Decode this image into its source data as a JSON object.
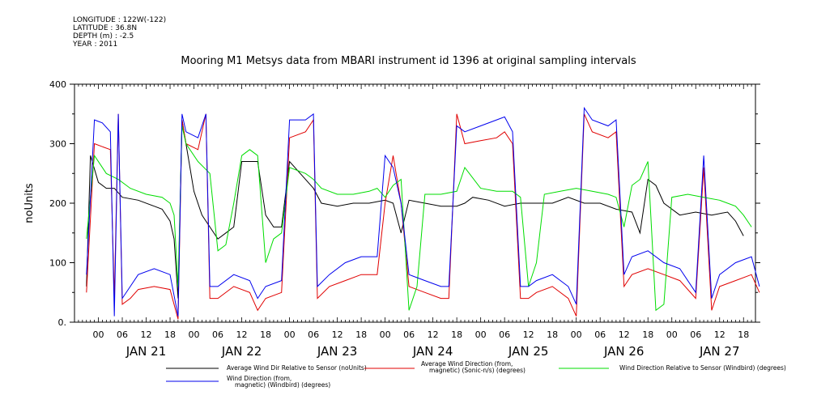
{
  "meta": {
    "longitude": "LONGITUDE : 122W(-122)",
    "latitude": "LATITUDE : 36.8N",
    "depth": "DEPTH (m) : -2.5",
    "year": "YEAR : 2011"
  },
  "chart_data": {
    "type": "line",
    "title": "Mooring M1 Metsys data from MBARI instrument id 1396 at original sampling intervals",
    "ylabel": "noUnits",
    "xlabel": "",
    "ylim": [
      0,
      400
    ],
    "yticks": [
      "0.",
      "100",
      "200",
      "300",
      "400"
    ],
    "xlim_hours": [
      -6,
      165
    ],
    "hour_ticks": [
      "00",
      "06",
      "12",
      "18",
      "00",
      "06",
      "12",
      "18",
      "00",
      "06",
      "12",
      "18",
      "00",
      "06",
      "12",
      "18",
      "00",
      "06",
      "12",
      "18",
      "00",
      "06",
      "12",
      "18",
      "00",
      "06",
      "12",
      "18"
    ],
    "day_labels": [
      "JAN 21",
      "JAN 22",
      "JAN 23",
      "JAN 24",
      "JAN 25",
      "JAN 26",
      "JAN 27"
    ],
    "grid": false,
    "legend_position": "bottom",
    "colors": {
      "black": "#000000",
      "red": "#e00000",
      "green": "#00dd00",
      "blue": "#0000ee"
    },
    "series": [
      {
        "name": "Average Wind Dir Relative to Sensor (noUnits)",
        "color": "#000000",
        "points": [
          [
            -3,
            60
          ],
          [
            -2,
            280
          ],
          [
            0,
            235
          ],
          [
            2,
            225
          ],
          [
            4,
            225
          ],
          [
            6,
            210
          ],
          [
            10,
            205
          ],
          [
            14,
            195
          ],
          [
            16,
            190
          ],
          [
            18,
            170
          ],
          [
            19,
            140
          ],
          [
            20,
            40
          ],
          [
            21,
            340
          ],
          [
            22,
            300
          ],
          [
            24,
            220
          ],
          [
            26,
            180
          ],
          [
            28,
            160
          ],
          [
            30,
            140
          ],
          [
            32,
            150
          ],
          [
            34,
            160
          ],
          [
            36,
            270
          ],
          [
            40,
            270
          ],
          [
            42,
            180
          ],
          [
            44,
            160
          ],
          [
            46,
            160
          ],
          [
            48,
            270
          ],
          [
            52,
            240
          ],
          [
            54,
            225
          ],
          [
            56,
            200
          ],
          [
            60,
            195
          ],
          [
            64,
            200
          ],
          [
            68,
            200
          ],
          [
            72,
            205
          ],
          [
            74,
            200
          ],
          [
            76,
            150
          ],
          [
            78,
            205
          ],
          [
            82,
            200
          ],
          [
            86,
            195
          ],
          [
            90,
            195
          ],
          [
            92,
            200
          ],
          [
            94,
            210
          ],
          [
            98,
            205
          ],
          [
            102,
            195
          ],
          [
            106,
            200
          ],
          [
            110,
            200
          ],
          [
            114,
            200
          ],
          [
            118,
            210
          ],
          [
            122,
            200
          ],
          [
            126,
            200
          ],
          [
            130,
            190
          ],
          [
            134,
            185
          ],
          [
            136,
            150
          ],
          [
            138,
            240
          ],
          [
            140,
            230
          ],
          [
            142,
            200
          ],
          [
            146,
            180
          ],
          [
            150,
            185
          ],
          [
            154,
            180
          ],
          [
            158,
            185
          ],
          [
            160,
            170
          ],
          [
            162,
            145
          ]
        ]
      },
      {
        "name": "Average Wind Direction (from, magnetic) (Sonic-n/s) (degrees)",
        "color": "#e00000",
        "points": [
          [
            -3,
            50
          ],
          [
            -1,
            300
          ],
          [
            1,
            295
          ],
          [
            3,
            290
          ],
          [
            4,
            40
          ],
          [
            5,
            350
          ],
          [
            6,
            30
          ],
          [
            8,
            40
          ],
          [
            10,
            55
          ],
          [
            14,
            60
          ],
          [
            18,
            55
          ],
          [
            20,
            5
          ],
          [
            21,
            340
          ],
          [
            22,
            300
          ],
          [
            25,
            290
          ],
          [
            27,
            350
          ],
          [
            28,
            40
          ],
          [
            30,
            40
          ],
          [
            34,
            60
          ],
          [
            38,
            50
          ],
          [
            40,
            20
          ],
          [
            42,
            40
          ],
          [
            46,
            50
          ],
          [
            48,
            310
          ],
          [
            52,
            320
          ],
          [
            54,
            340
          ],
          [
            55,
            40
          ],
          [
            58,
            60
          ],
          [
            62,
            70
          ],
          [
            66,
            80
          ],
          [
            70,
            80
          ],
          [
            72,
            200
          ],
          [
            74,
            280
          ],
          [
            76,
            200
          ],
          [
            78,
            60
          ],
          [
            82,
            50
          ],
          [
            86,
            40
          ],
          [
            88,
            40
          ],
          [
            90,
            350
          ],
          [
            92,
            300
          ],
          [
            96,
            305
          ],
          [
            100,
            310
          ],
          [
            102,
            320
          ],
          [
            104,
            300
          ],
          [
            106,
            40
          ],
          [
            108,
            40
          ],
          [
            110,
            50
          ],
          [
            114,
            60
          ],
          [
            118,
            40
          ],
          [
            120,
            10
          ],
          [
            122,
            350
          ],
          [
            124,
            320
          ],
          [
            128,
            310
          ],
          [
            130,
            320
          ],
          [
            132,
            60
          ],
          [
            134,
            80
          ],
          [
            138,
            90
          ],
          [
            142,
            80
          ],
          [
            146,
            70
          ],
          [
            150,
            40
          ],
          [
            152,
            260
          ],
          [
            154,
            20
          ],
          [
            156,
            60
          ],
          [
            160,
            70
          ],
          [
            164,
            80
          ],
          [
            166,
            50
          ]
        ]
      },
      {
        "name": "Wind Direction Relative to Sensor (Windbird) (degrees)",
        "color": "#00dd00",
        "points": [
          [
            -3,
            140
          ],
          [
            -1,
            280
          ],
          [
            2,
            250
          ],
          [
            5,
            240
          ],
          [
            8,
            225
          ],
          [
            12,
            215
          ],
          [
            16,
            210
          ],
          [
            18,
            200
          ],
          [
            19,
            180
          ],
          [
            20,
            60
          ],
          [
            21,
            330
          ],
          [
            22,
            300
          ],
          [
            25,
            270
          ],
          [
            28,
            250
          ],
          [
            30,
            120
          ],
          [
            32,
            130
          ],
          [
            34,
            200
          ],
          [
            36,
            280
          ],
          [
            38,
            290
          ],
          [
            40,
            280
          ],
          [
            42,
            100
          ],
          [
            44,
            140
          ],
          [
            46,
            150
          ],
          [
            48,
            260
          ],
          [
            52,
            250
          ],
          [
            54,
            240
          ],
          [
            56,
            225
          ],
          [
            60,
            215
          ],
          [
            64,
            215
          ],
          [
            68,
            220
          ],
          [
            70,
            225
          ],
          [
            72,
            210
          ],
          [
            74,
            230
          ],
          [
            76,
            240
          ],
          [
            78,
            20
          ],
          [
            80,
            60
          ],
          [
            82,
            215
          ],
          [
            86,
            215
          ],
          [
            90,
            220
          ],
          [
            92,
            260
          ],
          [
            96,
            225
          ],
          [
            100,
            220
          ],
          [
            104,
            220
          ],
          [
            106,
            210
          ],
          [
            108,
            60
          ],
          [
            110,
            100
          ],
          [
            112,
            215
          ],
          [
            116,
            220
          ],
          [
            120,
            225
          ],
          [
            124,
            220
          ],
          [
            128,
            215
          ],
          [
            130,
            210
          ],
          [
            132,
            160
          ],
          [
            134,
            230
          ],
          [
            136,
            240
          ],
          [
            138,
            270
          ],
          [
            140,
            20
          ],
          [
            142,
            30
          ],
          [
            144,
            210
          ],
          [
            148,
            215
          ],
          [
            152,
            210
          ],
          [
            156,
            205
          ],
          [
            160,
            195
          ],
          [
            162,
            180
          ],
          [
            164,
            160
          ]
        ]
      },
      {
        "name": "Wind Direction (from, magnetic) (Windbird) (degrees)",
        "color": "#0000ee",
        "points": [
          [
            -3,
            80
          ],
          [
            -1,
            340
          ],
          [
            1,
            335
          ],
          [
            3,
            320
          ],
          [
            4,
            10
          ],
          [
            5,
            350
          ],
          [
            6,
            40
          ],
          [
            8,
            60
          ],
          [
            10,
            80
          ],
          [
            14,
            90
          ],
          [
            18,
            80
          ],
          [
            20,
            10
          ],
          [
            21,
            350
          ],
          [
            22,
            320
          ],
          [
            25,
            310
          ],
          [
            27,
            350
          ],
          [
            28,
            60
          ],
          [
            30,
            60
          ],
          [
            34,
            80
          ],
          [
            38,
            70
          ],
          [
            40,
            40
          ],
          [
            42,
            60
          ],
          [
            46,
            70
          ],
          [
            48,
            340
          ],
          [
            52,
            340
          ],
          [
            54,
            350
          ],
          [
            55,
            60
          ],
          [
            58,
            80
          ],
          [
            62,
            100
          ],
          [
            66,
            110
          ],
          [
            70,
            110
          ],
          [
            72,
            280
          ],
          [
            74,
            260
          ],
          [
            76,
            200
          ],
          [
            78,
            80
          ],
          [
            82,
            70
          ],
          [
            86,
            60
          ],
          [
            88,
            60
          ],
          [
            90,
            330
          ],
          [
            92,
            320
          ],
          [
            96,
            330
          ],
          [
            100,
            340
          ],
          [
            102,
            345
          ],
          [
            104,
            320
          ],
          [
            106,
            60
          ],
          [
            108,
            60
          ],
          [
            110,
            70
          ],
          [
            114,
            80
          ],
          [
            118,
            60
          ],
          [
            120,
            30
          ],
          [
            122,
            360
          ],
          [
            124,
            340
          ],
          [
            128,
            330
          ],
          [
            130,
            340
          ],
          [
            132,
            80
          ],
          [
            134,
            110
          ],
          [
            138,
            120
          ],
          [
            142,
            100
          ],
          [
            146,
            90
          ],
          [
            150,
            50
          ],
          [
            152,
            280
          ],
          [
            154,
            40
          ],
          [
            156,
            80
          ],
          [
            160,
            100
          ],
          [
            164,
            110
          ],
          [
            166,
            60
          ]
        ]
      }
    ]
  },
  "legend": {
    "items": [
      {
        "line1": "Average Wind Dir Relative to Sensor (noUnits)",
        "line2": ""
      },
      {
        "line1": "Average Wind Direction (from,",
        "line2": "magnetic) (Sonic-n/s) (degrees)"
      },
      {
        "line1": "Wind Direction Relative to Sensor (Windbird) (degrees)",
        "line2": ""
      },
      {
        "line1": "Wind Direction (from,",
        "line2": "magnetic) (Windbird) (degrees)"
      }
    ]
  }
}
